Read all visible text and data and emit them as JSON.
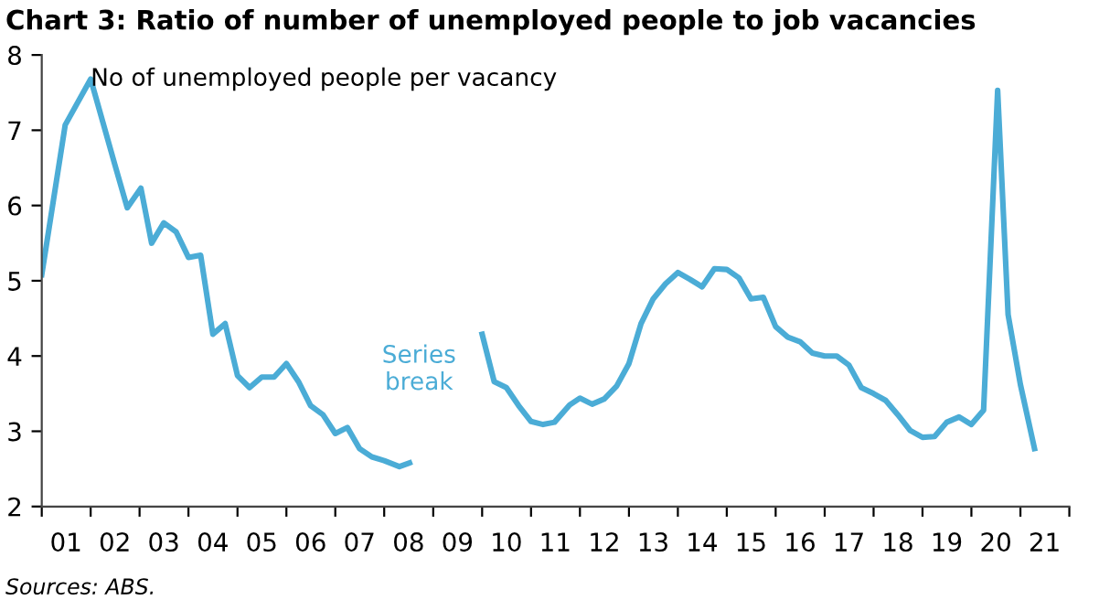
{
  "chart_data": {
    "type": "line",
    "title": "Chart 3: Ratio of number of unemployed people to job vacancies",
    "x": [
      "2001-01-01",
      "2001-06-25",
      "2002-01-01",
      "2002-07-01",
      "2002-10-01",
      "2003-01-11",
      "2003-04-01",
      "2003-07-01",
      "2003-10-01",
      "2004-01-01",
      "2004-04-01",
      "2004-07-01",
      "2004-10-01",
      "2005-01-01",
      "2005-04-01",
      "2005-07-01",
      "2005-10-01",
      "2006-01-01",
      "2006-04-01",
      "2006-07-01",
      "2006-10-01",
      "2007-01-01",
      "2007-04-01",
      "2007-07-01",
      "2007-10-01",
      "2008-01-01",
      "2008-04-23",
      "2008-07-08",
      "2009-04-01",
      "2010-01-01",
      "2010-04-01",
      "2010-07-01",
      "2010-10-01",
      "2011-01-01",
      "2011-04-01",
      "2011-06-25",
      "2011-10-16",
      "2012-01-01",
      "2012-04-01",
      "2012-07-01",
      "2012-10-01",
      "2013-01-01",
      "2013-04-01",
      "2013-07-01",
      "2013-10-01",
      "2014-01-01",
      "2014-04-01",
      "2014-07-01",
      "2014-10-01",
      "2015-01-01",
      "2015-04-01",
      "2015-07-01",
      "2015-10-01",
      "2016-01-01",
      "2016-04-01",
      "2016-07-01",
      "2016-10-01",
      "2017-01-01",
      "2017-04-01",
      "2017-07-01",
      "2017-10-01",
      "2018-01-01",
      "2018-04-01",
      "2018-07-01",
      "2018-10-01",
      "2019-01-01",
      "2019-04-01",
      "2019-07-01",
      "2019-10-01",
      "2020-01-01",
      "2020-04-01",
      "2020-07-15",
      "2020-10-01",
      "2021-01-01",
      "2021-04-16"
    ],
    "series": [
      {
        "name": "No of unemployed people per vacancy",
        "color": "#4bacd6",
        "values": [
          5.08,
          7.07,
          7.68,
          6.54,
          5.97,
          6.23,
          5.5,
          5.77,
          5.65,
          5.31,
          5.34,
          4.29,
          4.43,
          3.74,
          3.58,
          3.72,
          3.72,
          3.9,
          3.66,
          3.34,
          3.22,
          2.97,
          3.05,
          2.77,
          2.66,
          2.61,
          2.53,
          2.58,
          null,
          4.29,
          3.66,
          3.58,
          3.34,
          3.13,
          3.09,
          3.12,
          3.35,
          3.44,
          3.36,
          3.43,
          3.6,
          3.9,
          4.43,
          4.76,
          4.96,
          5.11,
          5.02,
          4.92,
          5.16,
          5.15,
          5.04,
          4.76,
          4.78,
          4.39,
          4.25,
          4.19,
          4.04,
          4.0,
          4.0,
          3.88,
          3.58,
          3.5,
          3.41,
          3.22,
          3.01,
          2.92,
          2.93,
          3.12,
          3.19,
          3.09,
          3.28,
          7.53,
          4.55,
          3.62,
          2.77
        ]
      }
    ],
    "annotations": [
      "Series\nbreak",
      "Sources: ABS."
    ],
    "xlim": [
      "2001-01-01",
      "2022-01-01"
    ],
    "xticks": [
      {
        "value": "2001-01-01",
        "label": null
      },
      {
        "value": "2001-07-01",
        "label": "01"
      },
      {
        "value": "2002-01-01",
        "label": null
      },
      {
        "value": "2002-07-01",
        "label": "02"
      },
      {
        "value": "2003-01-01",
        "label": null
      },
      {
        "value": "2003-07-01",
        "label": "03"
      },
      {
        "value": "2004-01-01",
        "label": null
      },
      {
        "value": "2004-07-01",
        "label": "04"
      },
      {
        "value": "2005-01-01",
        "label": null
      },
      {
        "value": "2005-07-01",
        "label": "05"
      },
      {
        "value": "2006-01-01",
        "label": null
      },
      {
        "value": "2006-07-01",
        "label": "06"
      },
      {
        "value": "2007-01-01",
        "label": null
      },
      {
        "value": "2007-07-01",
        "label": "07"
      },
      {
        "value": "2008-01-01",
        "label": null
      },
      {
        "value": "2008-07-01",
        "label": "08"
      },
      {
        "value": "2009-01-01",
        "label": null
      },
      {
        "value": "2009-07-01",
        "label": "09"
      },
      {
        "value": "2010-01-01",
        "label": null
      },
      {
        "value": "2010-07-01",
        "label": "10"
      },
      {
        "value": "2011-01-01",
        "label": null
      },
      {
        "value": "2011-07-01",
        "label": "11"
      },
      {
        "value": "2012-01-01",
        "label": null
      },
      {
        "value": "2012-07-01",
        "label": "12"
      },
      {
        "value": "2013-01-01",
        "label": null
      },
      {
        "value": "2013-07-01",
        "label": "13"
      },
      {
        "value": "2014-01-01",
        "label": null
      },
      {
        "value": "2014-07-01",
        "label": "14"
      },
      {
        "value": "2015-01-01",
        "label": null
      },
      {
        "value": "2015-07-01",
        "label": "15"
      },
      {
        "value": "2016-01-01",
        "label": null
      },
      {
        "value": "2016-07-01",
        "label": "16"
      },
      {
        "value": "2017-01-01",
        "label": null
      },
      {
        "value": "2017-07-01",
        "label": "17"
      },
      {
        "value": "2018-01-01",
        "label": null
      },
      {
        "value": "2018-07-01",
        "label": "18"
      },
      {
        "value": "2019-01-01",
        "label": null
      },
      {
        "value": "2019-07-01",
        "label": "19"
      },
      {
        "value": "2020-01-01",
        "label": null
      },
      {
        "value": "2020-07-01",
        "label": "20"
      },
      {
        "value": "2021-01-01",
        "label": null
      },
      {
        "value": "2021-07-01",
        "label": "21"
      },
      {
        "value": "2022-01-01",
        "label": null
      }
    ],
    "ylim": [
      2,
      8
    ],
    "yticks": [
      2,
      3,
      4,
      5,
      6,
      7,
      8
    ],
    "grid": false,
    "legend": false,
    "marker": "none",
    "line_style": "solid"
  }
}
